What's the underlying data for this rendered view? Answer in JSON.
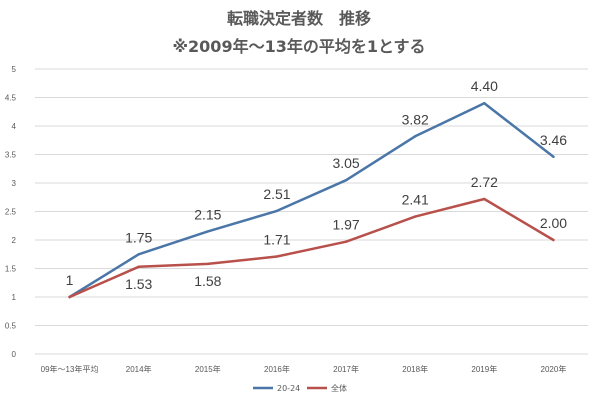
{
  "chart_data": {
    "type": "line",
    "title": "転職決定者数　推移",
    "subtitle": "※2009年～13年の平均を1とする",
    "xlabel": "",
    "ylabel": "",
    "categories": [
      "09年～13年平均",
      "2014年",
      "2015年",
      "2016年",
      "2017年",
      "2018年",
      "2019年",
      "2020年"
    ],
    "ylim": [
      0,
      5
    ],
    "yticks": [
      "0",
      "0.5",
      "1",
      "1.5",
      "2",
      "2.5",
      "3",
      "3.5",
      "4",
      "4.5",
      "5"
    ],
    "grid": true,
    "legend_position": "bottom",
    "series": [
      {
        "name": "20-24",
        "color": "#4a76a8",
        "values": [
          1,
          1.75,
          2.15,
          2.51,
          3.05,
          3.82,
          4.4,
          3.46
        ],
        "labels": [
          "1",
          "1.75",
          "2.15",
          "2.51",
          "3.05",
          "3.82",
          "4.40",
          "3.46"
        ],
        "label_position": "above"
      },
      {
        "name": "全体",
        "color": "#b8504b",
        "values": [
          1,
          1.53,
          1.58,
          1.71,
          1.97,
          2.41,
          2.72,
          2.0
        ],
        "labels": [
          "",
          "1.53",
          "1.58",
          "1.71",
          "1.97",
          "2.41",
          "2.72",
          "2.00"
        ],
        "label_position": "mixed"
      }
    ]
  }
}
